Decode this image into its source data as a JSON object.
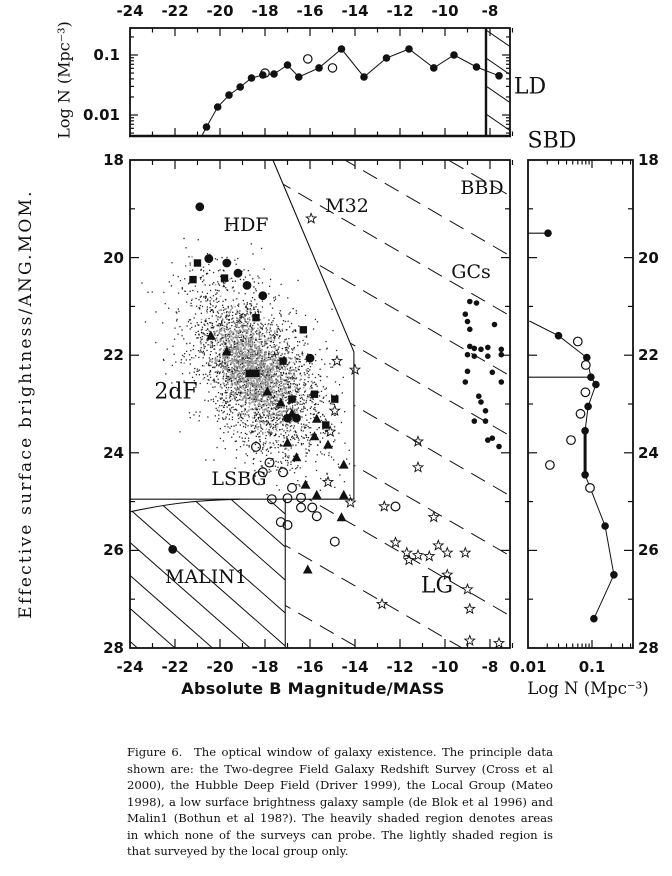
{
  "panels": {
    "top": {
      "y_label": "Log N (Mpc⁻³)",
      "x_tick_labels": [
        "-24",
        "-22",
        "-20",
        "-18",
        "-16",
        "-14",
        "-12",
        "-10",
        "-8"
      ],
      "y_tick_labels": [
        "0.1",
        "0.01"
      ],
      "region_label": "LD"
    },
    "main": {
      "x_label": "Absolute B Magnitude/MASS",
      "y_label": "Effective surface brightness/ANG.MOM.",
      "x_tick_labels": [
        "-24",
        "-22",
        "-20",
        "-18",
        "-16",
        "-14",
        "-12",
        "-10",
        "-8"
      ],
      "y_tick_labels": [
        "18",
        "20",
        "22",
        "24",
        "26",
        "28"
      ],
      "region_labels": {
        "hdf": "HDF",
        "m32": "M32",
        "bbd": "BBD",
        "gcs": "GCs",
        "twodf": "2dF",
        "lsbg": "LSBG",
        "malin1": "MALIN1",
        "lg": "LG"
      }
    },
    "sbd": {
      "label": "SBD",
      "x_label": "Log N (Mpc⁻³)",
      "x_tick_labels": [
        "0.01",
        "0.1"
      ],
      "y_tick_labels": [
        "18",
        "20",
        "22",
        "24",
        "26",
        "28"
      ]
    }
  },
  "caption": {
    "lines": [
      "Figure 6. The optical window of galaxy existence. The principle data",
      "shown are: the Two-degree Field Galaxy Redshift Survey (Cross et al",
      "2000), the Hubble Deep Field (Driver 1999), the Local Group (Mateo",
      "1998), a low surface brightness galaxy sample (de Blok et al 1996) and",
      "Malin1 (Bothun et al 198?). The heavily shaded region denotes areas",
      "in which none of the surveys can probe. The lightly shaded region is",
      "that surveyed by the local group only."
    ]
  },
  "chart_data": [
    {
      "id": "top-luminosity-density",
      "type": "line",
      "title": "LD — number density vs absolute magnitude",
      "xlabel": "Absolute B Magnitude",
      "ylabel": "Log N (Mpc⁻³)",
      "x_range": [
        -24,
        -6.9
      ],
      "y_range_log": [
        0.004,
        0.28
      ],
      "x_ticks": [
        -24,
        -22,
        -20,
        -18,
        -16,
        -14,
        -12,
        -10,
        -8
      ],
      "y_ticks_labeled": [
        0.1,
        0.01
      ],
      "shaded_beyond_x": -8,
      "filled_points": [
        [
          -20.85,
          0.0042
        ],
        [
          -20.6,
          0.0063
        ],
        [
          -20.1,
          0.0136
        ],
        [
          -19.6,
          0.0215
        ],
        [
          -19.1,
          0.0293
        ],
        [
          -18.6,
          0.0414
        ],
        [
          -18.1,
          0.0464
        ],
        [
          -17.6,
          0.0483
        ],
        [
          -17.0,
          0.068
        ],
        [
          -16.5,
          0.043
        ],
        [
          -15.6,
          0.061
        ],
        [
          -14.6,
          0.126
        ],
        [
          -13.6,
          0.043
        ],
        [
          -12.6,
          0.089
        ],
        [
          -11.6,
          0.126
        ],
        [
          -10.5,
          0.061
        ],
        [
          -9.6,
          0.1
        ],
        [
          -8.6,
          0.063
        ],
        [
          -7.6,
          0.045
        ]
      ],
      "open_points": [
        [
          -18.0,
          0.05
        ],
        [
          -16.1,
          0.086
        ],
        [
          -15.0,
          0.061
        ]
      ]
    },
    {
      "id": "main-optical-window",
      "type": "scatter",
      "xlabel": "Absolute B Magnitude/MASS",
      "ylabel": "Effective surface brightness/ANG.MOM.",
      "x_range": [
        -24,
        -6.9
      ],
      "y_range": [
        18,
        28
      ],
      "x_ticks": [
        -24,
        -22,
        -20,
        -18,
        -16,
        -14,
        -12,
        -10,
        -8
      ],
      "y_ticks": [
        18,
        20,
        22,
        24,
        26,
        28
      ],
      "hdf_circles": [
        [
          -20.9,
          18.96
        ],
        [
          -20.5,
          20.02
        ],
        [
          -19.7,
          20.11
        ],
        [
          -19.2,
          20.32
        ],
        [
          -18.8,
          20.57
        ],
        [
          -18.1,
          20.78
        ],
        [
          -16.0,
          22.06
        ],
        [
          -17.0,
          23.29
        ],
        [
          -16.6,
          23.29
        ]
      ],
      "squares": [
        [
          -21.0,
          20.11
        ],
        [
          -21.2,
          20.45
        ],
        [
          -19.8,
          20.42
        ],
        [
          -18.4,
          21.23
        ],
        [
          -16.3,
          21.48
        ],
        [
          -18.7,
          22.37
        ],
        [
          -18.4,
          22.37
        ],
        [
          -17.2,
          22.12
        ],
        [
          -16.8,
          22.9
        ],
        [
          -15.8,
          22.8
        ],
        [
          -14.9,
          22.9
        ],
        [
          -15.3,
          23.43
        ]
      ],
      "triangles": [
        [
          -20.4,
          21.61
        ],
        [
          -19.7,
          21.93
        ],
        [
          -17.9,
          22.75
        ],
        [
          -17.3,
          22.98
        ],
        [
          -16.8,
          23.2
        ],
        [
          -15.7,
          23.31
        ],
        [
          -15.8,
          23.67
        ],
        [
          -17.0,
          23.8
        ],
        [
          -15.2,
          23.84
        ],
        [
          -16.6,
          24.1
        ],
        [
          -14.5,
          24.25
        ],
        [
          -16.2,
          24.66
        ],
        [
          -15.7,
          24.87
        ],
        [
          -14.5,
          24.87
        ],
        [
          -14.6,
          25.33
        ],
        [
          -16.1,
          26.4
        ]
      ],
      "stars": [
        [
          -15.95,
          19.2
        ],
        [
          -14.8,
          22.12
        ],
        [
          -14.0,
          22.3
        ],
        [
          -14.9,
          23.14
        ],
        [
          -15.1,
          23.57
        ],
        [
          -15.2,
          24.6
        ],
        [
          -14.2,
          25.02
        ],
        [
          -11.2,
          23.77
        ],
        [
          -11.2,
          24.3
        ],
        [
          -12.7,
          25.1
        ]
      ],
      "lg_stars": [
        [
          -10.5,
          25.32
        ],
        [
          -12.2,
          25.84
        ],
        [
          -11.7,
          26.05
        ],
        [
          -11.6,
          26.2
        ],
        [
          -11.2,
          26.1
        ],
        [
          -10.7,
          26.12
        ],
        [
          -10.3,
          25.9
        ],
        [
          -9.9,
          26.05
        ],
        [
          -9.1,
          26.05
        ],
        [
          -9.9,
          26.5
        ],
        [
          -9.0,
          26.8
        ],
        [
          -12.8,
          27.1
        ],
        [
          -8.9,
          27.2
        ],
        [
          -8.9,
          27.85
        ],
        [
          -7.6,
          27.9
        ]
      ],
      "open_circles": [
        [
          -18.4,
          23.88
        ],
        [
          -17.8,
          24.2
        ],
        [
          -18.1,
          24.4
        ],
        [
          -17.2,
          24.4
        ],
        [
          -16.8,
          24.72
        ],
        [
          -17.7,
          24.95
        ],
        [
          -17.0,
          24.93
        ],
        [
          -16.4,
          24.92
        ],
        [
          -16.4,
          25.12
        ],
        [
          -15.9,
          25.12
        ],
        [
          -17.3,
          25.42
        ],
        [
          -17.0,
          25.48
        ],
        [
          -15.7,
          25.3
        ],
        [
          -14.9,
          25.82
        ],
        [
          -12.2,
          25.1
        ]
      ],
      "gc_dots": [
        [
          -8.9,
          20.9
        ],
        [
          -8.6,
          20.93
        ],
        [
          -9.1,
          21.16
        ],
        [
          -9.0,
          21.31
        ],
        [
          -7.8,
          21.37
        ],
        [
          -8.9,
          21.47
        ],
        [
          -8.9,
          21.82
        ],
        [
          -8.7,
          21.86
        ],
        [
          -9.0,
          21.99
        ],
        [
          -8.4,
          21.88
        ],
        [
          -8.1,
          21.84
        ],
        [
          -7.5,
          21.88
        ],
        [
          -8.7,
          22.02
        ],
        [
          -8.1,
          22.02
        ],
        [
          -7.5,
          21.99
        ],
        [
          -9.0,
          22.33
        ],
        [
          -7.9,
          22.35
        ],
        [
          -9.1,
          22.55
        ],
        [
          -7.5,
          22.55
        ],
        [
          -8.5,
          22.84
        ],
        [
          -8.4,
          22.96
        ],
        [
          -8.2,
          23.14
        ],
        [
          -8.7,
          23.35
        ],
        [
          -8.2,
          23.35
        ],
        [
          -8.1,
          23.74
        ],
        [
          -7.9,
          23.7
        ],
        [
          -7.6,
          23.87
        ]
      ],
      "malin1_point": [
        -22.1,
        25.98
      ],
      "twodf_cloud": {
        "center": [
          -18.45,
          22.35
        ],
        "sigma": [
          1.6,
          0.95
        ],
        "corr": 0.5,
        "n_dark": 2600,
        "n_gray": 1400,
        "seed": 42
      },
      "boundaries": {
        "window_line": [
          [
            -17.65,
            18
          ],
          [
            -14.05,
            21.93
          ],
          [
            -14.05,
            24.95
          ],
          [
            -24,
            24.95
          ]
        ],
        "malin1_top_from": [
          -24,
          25.21
        ],
        "malin1_top_to": [
          -19.1,
          24.95
        ],
        "malin1_right_x": -17.1
      }
    },
    {
      "id": "sbd-surface-brightness-density",
      "type": "line",
      "xlabel": "Log N (Mpc⁻³)",
      "ylabel": "Effective surface brightness",
      "x_range_log": [
        0.01,
        0.44
      ],
      "y_range": [
        18,
        28
      ],
      "line_points": [
        [
          0.0105,
          21.3
        ],
        [
          0.03,
          21.6
        ],
        [
          0.083,
          22.05
        ],
        [
          0.096,
          22.45
        ],
        [
          0.115,
          22.6
        ],
        [
          0.087,
          23.05
        ],
        [
          0.078,
          23.55
        ],
        [
          0.078,
          24.45
        ],
        [
          0.16,
          25.5
        ],
        [
          0.22,
          26.5
        ],
        [
          0.107,
          27.4
        ]
      ],
      "isolated_filled": [
        [
          0.0205,
          19.5
        ]
      ],
      "open_points": [
        [
          0.06,
          21.72
        ],
        [
          0.08,
          22.2
        ],
        [
          0.079,
          22.76
        ],
        [
          0.066,
          23.2
        ],
        [
          0.047,
          23.74
        ],
        [
          0.022,
          24.25
        ],
        [
          0.093,
          24.72
        ]
      ],
      "h_error_bars": [
        [
          0.0205,
          19.5
        ],
        [
          0.096,
          22.45
        ]
      ],
      "v_error_bar": {
        "n": 0.078,
        "sb_from": 23.55,
        "sb_to": 24.45
      }
    }
  ]
}
